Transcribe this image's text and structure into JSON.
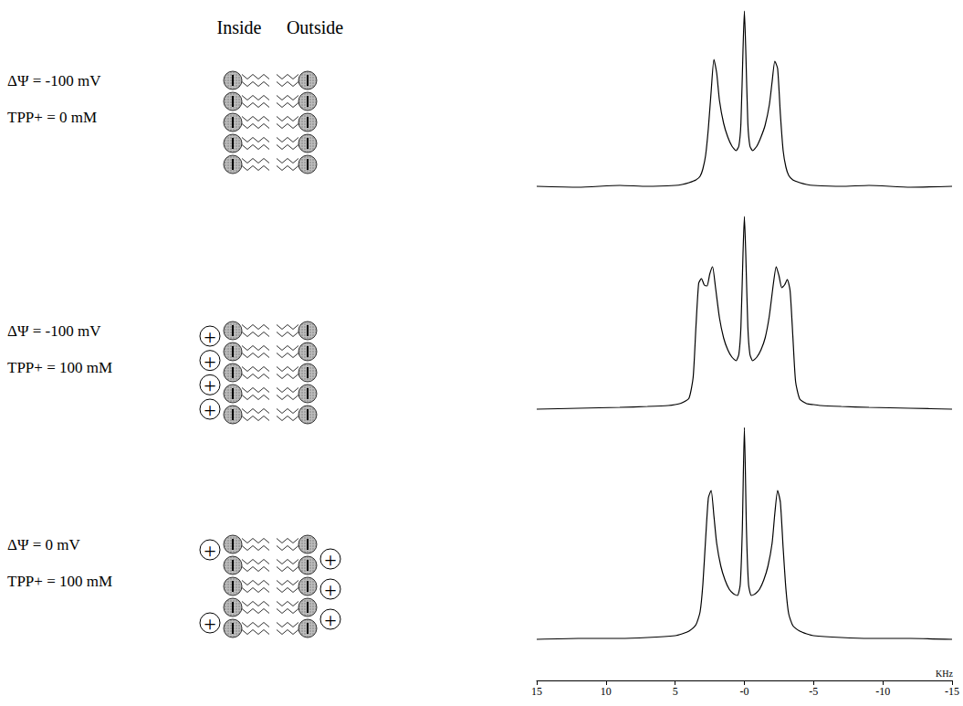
{
  "diagram": {
    "headers": [
      "Inside",
      "Outside"
    ],
    "plus_sign": "+",
    "lipids_per_leaflet": 5,
    "panels": [
      {
        "potential": "ΔΨ = -100 mV",
        "tpp": "TPP+ = 0 mM",
        "plus_inside": 0,
        "plus_outside": 0
      },
      {
        "potential": "ΔΨ = -100 mV",
        "tpp": "TPP+ = 100 mM",
        "plus_inside": 4,
        "plus_outside": 0
      },
      {
        "potential": "ΔΨ = 0 mV",
        "tpp": "TPP+ = 100 mM",
        "plus_inside": 2,
        "plus_outside": 3
      }
    ]
  },
  "chart_data": [
    {
      "type": "line",
      "color": "#000000",
      "tick_labels": false,
      "xlim": [
        15,
        -15
      ],
      "ylim": [
        -0.1,
        2.0
      ],
      "x": [
        15,
        12,
        9,
        7,
        5,
        4.5,
        4,
        3.5,
        3.2,
        3.0,
        2.8,
        2.6,
        2.4,
        2.2,
        2.0,
        1.8,
        1.5,
        1.2,
        0.9,
        0.6,
        0.4,
        0.25,
        0.1,
        0,
        -0.1,
        -0.25,
        -0.4,
        -0.6,
        -0.9,
        -1.2,
        -1.5,
        -1.8,
        -2.0,
        -2.2,
        -2.4,
        -2.6,
        -2.8,
        -3.0,
        -3.2,
        -3.5,
        -4,
        -4.5,
        -5,
        -7,
        -9,
        -12,
        -15
      ],
      "values": [
        0.01,
        0.0,
        0.02,
        0.01,
        0.02,
        0.03,
        0.05,
        0.08,
        0.12,
        0.2,
        0.35,
        0.65,
        1.05,
        1.4,
        1.25,
        0.95,
        0.7,
        0.55,
        0.45,
        0.4,
        0.45,
        0.7,
        1.5,
        1.93,
        1.5,
        0.7,
        0.45,
        0.4,
        0.45,
        0.55,
        0.68,
        0.9,
        1.15,
        1.38,
        1.3,
        0.8,
        0.4,
        0.22,
        0.13,
        0.08,
        0.05,
        0.03,
        0.02,
        0.01,
        0.02,
        0.0,
        0.01
      ]
    },
    {
      "type": "line",
      "color": "#000000",
      "tick_labels": false,
      "xlim": [
        15,
        -15
      ],
      "ylim": [
        -0.1,
        2.2
      ],
      "x": [
        15,
        12,
        9,
        7,
        5.5,
        5,
        4.5,
        4.0,
        3.7,
        3.5,
        3.3,
        3.1,
        2.9,
        2.7,
        2.5,
        2.3,
        2.1,
        1.8,
        1.5,
        1.2,
        0.9,
        0.6,
        0.4,
        0.25,
        0.1,
        0,
        -0.1,
        -0.25,
        -0.4,
        -0.6,
        -0.9,
        -1.2,
        -1.5,
        -1.8,
        -2.1,
        -2.3,
        -2.5,
        -2.7,
        -2.9,
        -3.1,
        -3.3,
        -3.5,
        -3.7,
        -4.0,
        -4.5,
        -5,
        -5.5,
        -7,
        -9,
        -12,
        -15
      ],
      "values": [
        0.0,
        0.01,
        0.02,
        0.03,
        0.04,
        0.05,
        0.07,
        0.12,
        0.35,
        0.9,
        1.38,
        1.43,
        1.36,
        1.35,
        1.48,
        1.56,
        1.35,
        1.0,
        0.78,
        0.65,
        0.57,
        0.53,
        0.6,
        0.9,
        1.7,
        2.11,
        1.7,
        0.9,
        0.6,
        0.53,
        0.57,
        0.65,
        0.78,
        1.02,
        1.38,
        1.56,
        1.46,
        1.33,
        1.36,
        1.42,
        1.3,
        0.8,
        0.3,
        0.11,
        0.06,
        0.05,
        0.04,
        0.03,
        0.02,
        0.01,
        0.0
      ]
    },
    {
      "type": "line",
      "color": "#000000",
      "tick_labels": "x",
      "xlabel": "KHz",
      "xlim": [
        15,
        -15
      ],
      "ylim": [
        -0.45,
        2.4
      ],
      "xticks": [
        15,
        10,
        5,
        {
          "value": 0,
          "label": "-0"
        },
        -5,
        -10,
        -15
      ],
      "x": [
        15,
        12,
        9,
        7,
        5,
        4.5,
        4,
        3.5,
        3.2,
        3.0,
        2.8,
        2.6,
        2.4,
        2.2,
        2.0,
        1.7,
        1.4,
        1.1,
        0.8,
        0.5,
        0.3,
        0.15,
        0,
        -0.15,
        -0.3,
        -0.5,
        -0.8,
        -1.1,
        -1.4,
        -1.7,
        -2.0,
        -2.2,
        -2.4,
        -2.6,
        -2.8,
        -3.0,
        -3.2,
        -3.5,
        -4,
        -4.5,
        -5,
        -7,
        -9,
        -12,
        -15
      ],
      "values": [
        0.0,
        0.01,
        0.01,
        0.02,
        0.04,
        0.06,
        0.09,
        0.16,
        0.3,
        0.6,
        1.1,
        1.55,
        1.63,
        1.35,
        1.05,
        0.8,
        0.65,
        0.55,
        0.5,
        0.48,
        0.6,
        1.2,
        2.32,
        1.2,
        0.6,
        0.48,
        0.5,
        0.55,
        0.65,
        0.8,
        1.05,
        1.38,
        1.63,
        1.5,
        1.0,
        0.55,
        0.28,
        0.15,
        0.09,
        0.06,
        0.04,
        0.02,
        0.01,
        0.01,
        0.0
      ]
    }
  ]
}
